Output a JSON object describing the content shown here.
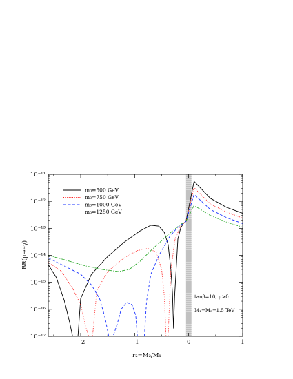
{
  "chart_data": {
    "type": "line",
    "xlabel": "r₂=M₂/M₁",
    "ylabel": "BR(μ→eγ)",
    "xlim": [
      -2.6,
      1.0
    ],
    "ylim": [
      1e-17,
      1e-11
    ],
    "y_scale": "log",
    "x_ticks": [
      "−2",
      "−1",
      "0",
      "1"
    ],
    "x_tick_values": [
      -2,
      -1,
      0,
      1
    ],
    "y_ticks": [
      "10⁻¹⁷",
      "10⁻¹⁶",
      "10⁻¹⁵",
      "10⁻¹⁴",
      "10⁻¹³",
      "10⁻¹²",
      "10⁻¹¹"
    ],
    "y_tick_exponents": [
      -17,
      -16,
      -15,
      -14,
      -13,
      -12,
      -11
    ],
    "excluded_band": [
      -0.05,
      0.05
    ],
    "legend_position": "top-left",
    "annotations": [
      "tanβ=10; μ>0",
      "M₁=M₃=1.5 TeV"
    ],
    "series": [
      {
        "name": "m₀=500 GeV",
        "color": "#000000",
        "dash": "solid",
        "points": [
          [
            -2.6,
            4.5e-15
          ],
          [
            -2.45,
            1.5e-15
          ],
          [
            -2.3,
            2e-16
          ],
          [
            -2.2,
            3e-17
          ],
          [
            -2.15,
            1e-17
          ],
          [
            -2.05,
            1e-17
          ],
          [
            -2.0,
            2.5e-16
          ],
          [
            -1.8,
            2e-15
          ],
          [
            -1.5,
            9e-15
          ],
          [
            -1.2,
            3e-14
          ],
          [
            -0.9,
            8e-14
          ],
          [
            -0.7,
            1.3e-13
          ],
          [
            -0.55,
            1.2e-13
          ],
          [
            -0.45,
            7e-14
          ],
          [
            -0.38,
            2.5e-14
          ],
          [
            -0.33,
            3e-15
          ],
          [
            -0.3,
            4e-16
          ],
          [
            -0.28,
            2e-17
          ],
          [
            -0.26,
            3e-16
          ],
          [
            -0.2,
            4e-14
          ],
          [
            -0.15,
            1e-13
          ],
          [
            -0.1,
            1.5e-13
          ],
          [
            -0.05,
            1.8e-13
          ],
          [
            0.1,
            5.5e-12
          ],
          [
            0.4,
            1.3e-12
          ],
          [
            0.7,
            6e-13
          ],
          [
            1.0,
            3.6e-13
          ]
        ]
      },
      {
        "name": "m₀=750 GeV",
        "color": "#ff2020",
        "dash": "dotted",
        "points": [
          [
            -2.6,
            5.5e-15
          ],
          [
            -2.35,
            2.5e-15
          ],
          [
            -2.15,
            6e-16
          ],
          [
            -2.0,
            1.5e-16
          ],
          [
            -1.9,
            2e-17
          ],
          [
            -1.85,
            1e-17
          ],
          [
            -1.78,
            1e-17
          ],
          [
            -1.7,
            5e-16
          ],
          [
            -1.5,
            2.5e-15
          ],
          [
            -1.2,
            8e-15
          ],
          [
            -0.95,
            1.5e-14
          ],
          [
            -0.75,
            1.8e-14
          ],
          [
            -0.6,
            1.3e-14
          ],
          [
            -0.5,
            3e-15
          ],
          [
            -0.45,
            3e-16
          ],
          [
            -0.42,
            1e-17
          ],
          [
            -0.38,
            1e-17
          ],
          [
            -0.33,
            3e-15
          ],
          [
            -0.25,
            4e-14
          ],
          [
            -0.15,
            1.2e-13
          ],
          [
            -0.05,
            1.8e-13
          ],
          [
            0.1,
            3.2e-12
          ],
          [
            0.4,
            8e-13
          ],
          [
            0.7,
            4e-13
          ],
          [
            1.0,
            2.4e-13
          ]
        ]
      },
      {
        "name": "m₀=1000 GeV",
        "color": "#1a33ff",
        "dash": "dashed",
        "points": [
          [
            -2.6,
            8e-15
          ],
          [
            -2.3,
            4e-15
          ],
          [
            -2.0,
            2e-15
          ],
          [
            -1.8,
            8e-16
          ],
          [
            -1.65,
            2.5e-16
          ],
          [
            -1.55,
            5e-17
          ],
          [
            -1.48,
            1e-17
          ],
          [
            -1.4,
            1e-17
          ],
          [
            -1.32,
            3e-17
          ],
          [
            -1.25,
            1e-16
          ],
          [
            -1.15,
            1.8e-16
          ],
          [
            -1.05,
            1.5e-16
          ],
          [
            -0.98,
            6e-17
          ],
          [
            -0.95,
            1e-17
          ],
          [
            -0.82,
            1e-17
          ],
          [
            -0.78,
            2e-16
          ],
          [
            -0.7,
            2e-15
          ],
          [
            -0.55,
            1e-14
          ],
          [
            -0.35,
            5e-14
          ],
          [
            -0.2,
            1.1e-13
          ],
          [
            -0.05,
            1.8e-13
          ],
          [
            0.1,
            1.8e-12
          ],
          [
            0.4,
            5e-13
          ],
          [
            0.7,
            2.5e-13
          ],
          [
            1.0,
            1.5e-13
          ]
        ]
      },
      {
        "name": "m₀=1250 GeV",
        "color": "#2eaa2e",
        "dash": "dashdot",
        "points": [
          [
            -2.6,
            1e-14
          ],
          [
            -2.2,
            6e-15
          ],
          [
            -1.9,
            4e-15
          ],
          [
            -1.6,
            3e-15
          ],
          [
            -1.3,
            2.5e-15
          ],
          [
            -1.1,
            3e-15
          ],
          [
            -0.9,
            6e-15
          ],
          [
            -0.7,
            1.5e-14
          ],
          [
            -0.5,
            3.5e-14
          ],
          [
            -0.3,
            8e-14
          ],
          [
            -0.15,
            1.4e-13
          ],
          [
            -0.05,
            1.8e-13
          ],
          [
            0.1,
            7e-13
          ],
          [
            0.4,
            3e-13
          ],
          [
            0.7,
            1.7e-13
          ],
          [
            1.0,
            1.1e-13
          ]
        ]
      }
    ]
  }
}
